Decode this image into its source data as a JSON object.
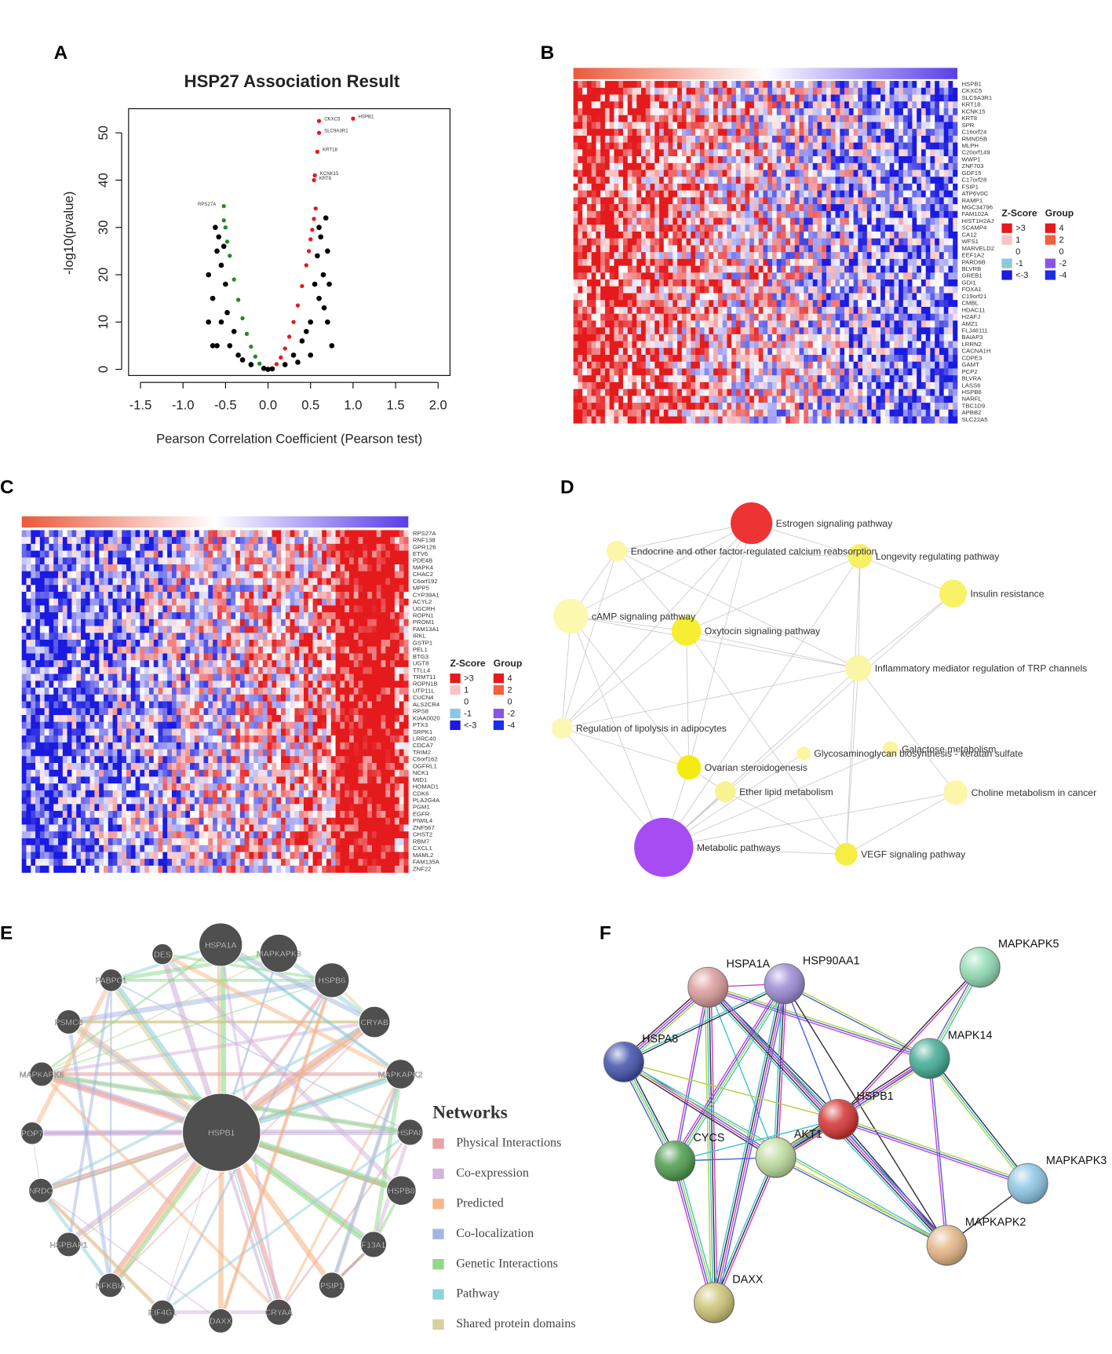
{
  "panel_letters": [
    "A",
    "B",
    "C",
    "D",
    "E",
    "F"
  ],
  "volcano": {
    "type": "scatter",
    "title": "HSP27 Association Result",
    "x_label": "Pearson Correlation Coefficient (Pearson test)",
    "y_label": "-log10(pvalue)",
    "xlim": [
      -1.64,
      2.14
    ],
    "ylim": [
      -1.3,
      55.1
    ],
    "xticks": [
      {
        "value": -1.5,
        "label": "-1.5"
      },
      {
        "value": -1,
        "label": "-1.0"
      },
      {
        "value": -0.5,
        "label": "-0.5"
      },
      {
        "value": 0,
        "label": "0.0"
      },
      {
        "value": 0.5,
        "label": "0.5"
      },
      {
        "value": 1,
        "label": "1.0"
      },
      {
        "value": 1.5,
        "label": "1.5"
      },
      {
        "value": 2,
        "label": "2.0"
      }
    ],
    "yticks": [
      0,
      10,
      20,
      30,
      40,
      50
    ],
    "series": [
      {
        "color": "#000000",
        "x": [
          -0.6,
          -0.65,
          -0.55,
          -0.45,
          -0.6,
          -0.35,
          -0.7,
          -0.5,
          -0.62,
          -0.55,
          -0.4,
          -0.3,
          -0.2,
          -0.05,
          0,
          0.05,
          0.2,
          0.3,
          0.4,
          0.5,
          0.6,
          0.65,
          0.7,
          0.6,
          0.55,
          0.45,
          0.7,
          0.75,
          0.62,
          0.68,
          0.5,
          0.35,
          -0.7,
          -0.65,
          -0.58,
          -0.48,
          -0.52,
          0.58,
          0.66,
          0.72
        ],
        "y": [
          25,
          15,
          10,
          5,
          5,
          3,
          20,
          18,
          30,
          22,
          8,
          2,
          1,
          0.2,
          0,
          0.1,
          1,
          3,
          6,
          10,
          15,
          20,
          25,
          30,
          18,
          8,
          10,
          5,
          28,
          32,
          3,
          1.5,
          10,
          5,
          28,
          12,
          26,
          24,
          13,
          18
        ]
      },
      {
        "color": "#228b22",
        "x": [
          -0.1,
          -0.15,
          -0.2,
          -0.25,
          -0.3,
          -0.35,
          -0.4,
          -0.45,
          -0.48,
          -0.5,
          -0.52,
          -0.52
        ],
        "y": [
          1.2,
          2.7,
          4.8,
          7.5,
          10.8,
          14.7,
          19,
          24,
          27,
          30,
          31.5,
          34.5
        ],
        "point_labels": [
          null,
          null,
          null,
          null,
          null,
          null,
          null,
          null,
          null,
          null,
          null,
          "RPS27A"
        ]
      },
      {
        "color": "#e31a1c",
        "x": [
          0.1,
          0.15,
          0.2,
          0.25,
          0.3,
          0.35,
          0.4,
          0.45,
          0.48,
          0.5,
          0.52,
          0.54,
          0.56,
          1.0,
          0.6,
          0.6,
          0.58,
          0.55,
          0.54
        ],
        "y": [
          1.1,
          2.5,
          4.4,
          6.9,
          10,
          13.5,
          17.6,
          22,
          25,
          27.5,
          29.5,
          31.8,
          34,
          53,
          52.5,
          50,
          46,
          41,
          40
        ],
        "point_labels": [
          null,
          null,
          null,
          null,
          null,
          null,
          null,
          null,
          null,
          null,
          null,
          null,
          null,
          "HSPB1",
          "CKXC5",
          "SLC9A3R1",
          "KRT18",
          "KCNK15",
          "KRT8"
        ]
      }
    ]
  },
  "heatmap_b": {
    "genes": [
      "HSPB1",
      "CKXC5",
      "SLC9A3R1",
      "KRT18",
      "KCNK15",
      "KRT8",
      "SPR",
      "C16orf24",
      "RMND5B",
      "MLPH",
      "C20orf149",
      "WWP1",
      "ZNF703",
      "GDF15",
      "C17orf28",
      "FSIP1",
      "ATP6V0C",
      "RAMP1",
      "MGC34796",
      "FAM102A",
      "HIST1H2AJ",
      "SCAMP4",
      "CA12",
      "WFS1",
      "MARVELD2",
      "EEF1A2",
      "PARD6B",
      "BLVRB",
      "GREB1",
      "GDI1",
      "FOXA1",
      "C19orf21",
      "CMBL",
      "HDAC11",
      "H2AFJ",
      "AMZ1",
      "FLJ46111",
      "BAIAP3",
      "LRRN2",
      "CACNA1H",
      "CDPE3",
      "GAMT",
      "PCP2",
      "BLVRA",
      "LASS6",
      "HSPB6",
      "NARFL",
      "TBC1D9",
      "APBB2",
      "SLC22A5"
    ],
    "legend": {
      "zscore_title": "Z-Score",
      "zscore": [
        ">3",
        1,
        0,
        -1,
        "<-3"
      ],
      "zscore_colors": [
        "#e41a1c",
        "#f6c4c8",
        "#ffffff",
        "#8cc8e4",
        "#1a1ae0"
      ],
      "group_title": "Group",
      "group": [
        4,
        2,
        0,
        -2,
        -4
      ],
      "group_colors": [
        "#e41a1c",
        "#f2603c",
        "#ffffff",
        "#8a55e6",
        "#1a2ee8"
      ]
    }
  },
  "heatmap_c": {
    "genes": [
      "RPS27A",
      "RNF138",
      "GPR126",
      "ETV6",
      "PDE4B",
      "MAPK4",
      "CHAC2",
      "C6orf192",
      "MPP5",
      "CYP39A1",
      "ACYL2",
      "UGCRH",
      "ROPN1",
      "PROM1",
      "FAM13A1",
      "IRKL",
      "GSTP1",
      "PEL1",
      "BTG3",
      "UGT8",
      "TTLL4",
      "TRMT11",
      "ROPN1B",
      "UTP11L",
      "CUCN4",
      "ALS2CR4",
      "RPS8",
      "KIAA0020",
      "PTX3",
      "SRPK1",
      "LRRC40",
      "CDCA7",
      "TRIM2",
      "C6orf162",
      "OGFRL1",
      "NCK1",
      "MID1",
      "HOMAD1",
      "CDK6",
      "PLA2G4A",
      "PGM1",
      "EGFR",
      "PIWIL4",
      "ZNF567",
      "CHST2",
      "RBM7",
      "CXCL1",
      "MAML2",
      "FAM135A",
      "ZNF22"
    ],
    "legend": {
      "zscore_title": "Z-Score",
      "zscore": [
        ">3",
        1,
        0,
        -1,
        "<-3"
      ],
      "zscore_colors": [
        "#e41a1c",
        "#f6c4c8",
        "#ffffff",
        "#8cc8e4",
        "#1a1ae0"
      ],
      "group_title": "Group",
      "group": [
        4,
        2,
        0,
        -2,
        -4
      ],
      "group_colors": [
        "#e41a1c",
        "#f2603c",
        "#ffffff",
        "#8a55e6",
        "#1a2ee8"
      ]
    }
  },
  "kegg_network": {
    "nodes": [
      {
        "label": "Estrogen signaling pathway",
        "color": "#ee3333"
      },
      {
        "label": "Endocrine and other factor-regulated calcium reabsorption",
        "color": "#fbf6a8"
      },
      {
        "label": "Longevity regulating pathway",
        "color": "#f7ef66"
      },
      {
        "label": "Insulin resistance",
        "color": "#f8f266"
      },
      {
        "label": "cAMP signaling pathway",
        "color": "#fcf8b0"
      },
      {
        "label": "Oxytocin signaling pathway",
        "color": "#f6ee33"
      },
      {
        "label": "Inflammatory mediator regulation of TRP channels",
        "color": "#faf6a6"
      },
      {
        "label": "Regulation of lipolysis in adipocytes",
        "color": "#fbf8b4"
      },
      {
        "label": "Glycosaminoglycan biosynthesis - keratan sulfate",
        "color": "#fbf6a0"
      },
      {
        "label": "Galactose metabolism",
        "color": "#faf4a0"
      },
      {
        "label": "Ovarian steroidogenesis",
        "color": "#f4ec10"
      },
      {
        "label": "Ether lipid metabolism",
        "color": "#f8f290"
      },
      {
        "label": "Choline metabolism in cancer",
        "color": "#fbf6a8"
      },
      {
        "label": "Metabolic pathways",
        "color": "#a64cf2"
      },
      {
        "label": "VEGF signaling pathway",
        "color": "#f6ee44"
      }
    ]
  },
  "genemania_network": {
    "nodes": [
      "HSPB1",
      "HSPA1A",
      "MAPKAPK3",
      "DES",
      "HSPB6",
      "PABPC1",
      "CRYAB",
      "PSMC6",
      "MAPKAPK5",
      "MAPKAPK2",
      "POP7",
      "HSPA8",
      "NRDC",
      "HSPB8",
      "HSPBAP1",
      "F13A1",
      "NFKBIA",
      "PSIP1",
      "EIF4G1",
      "DAXX",
      "CRYAA"
    ],
    "legend_title": "Networks",
    "legend": [
      {
        "label": "Physical Interactions",
        "color": "#e8a3a1"
      },
      {
        "label": "Co-expression",
        "color": "#d4b4dc"
      },
      {
        "label": "Predicted",
        "color": "#f5b886"
      },
      {
        "label": "Co-localization",
        "color": "#a4b6e0"
      },
      {
        "label": "Genetic Interactions",
        "color": "#90d88c"
      },
      {
        "label": "Pathway",
        "color": "#90d2da"
      },
      {
        "label": "Shared protein domains",
        "color": "#d8d09e"
      }
    ]
  },
  "string_network": {
    "nodes": [
      {
        "label": "HSPA1A",
        "color": "#d99a9a"
      },
      {
        "label": "HSP90AA1",
        "color": "#9a8ad4"
      },
      {
        "label": "MAPKAPK5",
        "color": "#90dcb4"
      },
      {
        "label": "HSPA8",
        "color": "#4050ac"
      },
      {
        "label": "MAPK14",
        "color": "#40aa94"
      },
      {
        "label": "HSPB1",
        "color": "#d43030"
      },
      {
        "label": "CYCS",
        "color": "#4c9c4c"
      },
      {
        "label": "AKT1",
        "color": "#bcdc9c"
      },
      {
        "label": "MAPKAPK3",
        "color": "#8cc4e4"
      },
      {
        "label": "MAPKAPK2",
        "color": "#e4b484"
      },
      {
        "label": "DAXX",
        "color": "#ccc474"
      }
    ]
  }
}
